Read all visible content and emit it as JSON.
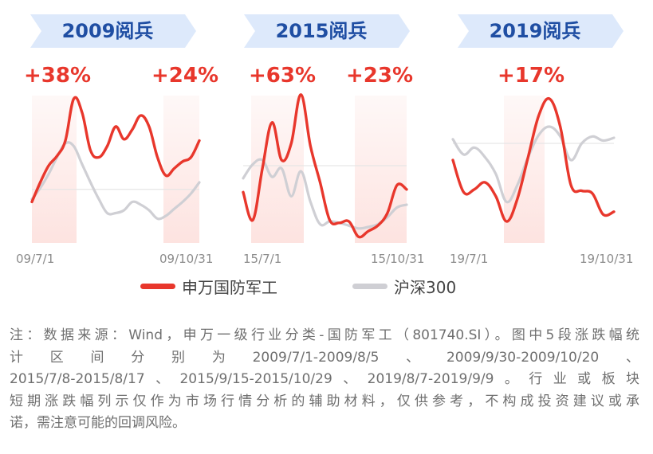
{
  "panels": [
    {
      "title": "2009阅兵",
      "left_change": "+38%",
      "right_change": "+24%",
      "x_start": "09/7/1",
      "x_end": "09/10/31"
    },
    {
      "title": "2015阅兵",
      "left_change": "+63%",
      "right_change": "+23%",
      "x_start": "15/7/1",
      "x_end": "15/10/31"
    },
    {
      "title": "2019阅兵",
      "left_change": "+17%",
      "right_change": "",
      "x_start": "19/7/1",
      "x_end": "19/10/31"
    }
  ],
  "legend": [
    {
      "label": "申万国防军工",
      "color": "#e8372c"
    },
    {
      "label": "沪深300",
      "color": "#cfcfd4"
    }
  ],
  "note_lines": [
    "注：数据来源：Wind，申万一级行业分类-国防军工（801740.SI）。图中5段涨跌幅统",
    "计区间分别为2009/7/1-2009/8/5、2009/9/30-2009/10/20、",
    "2015/7/8-2015/8/17、2015/9/15-2015/10/29、2019/8/7-2019/9/9。行业或板块",
    "短期涨跌幅列示仅作为市场行情分析的辅助材料，仅供参考，不构成投资建议或承",
    "诺，需注意可能的回调风险。"
  ],
  "colors": {
    "pill_bg": "#dde9fb",
    "pill_text": "#1f4ea3",
    "highlight": "#fde3e0",
    "red": "#e8372c",
    "gray": "#cfcfd4"
  },
  "chart_data": [
    {
      "type": "line",
      "title": "2009阅兵",
      "x_range": [
        "09/7/1",
        "09/10/31"
      ],
      "highlights": [
        {
          "start": "2009/7/1",
          "end": "2009/8/5",
          "change": "+38%"
        },
        {
          "start": "2009/9/30",
          "end": "2009/10/20",
          "change": "+24%"
        }
      ],
      "series": [
        {
          "name": "申万国防军工",
          "values": [
            0.18,
            0.32,
            0.44,
            0.51,
            0.62,
            0.92,
            0.82,
            0.55,
            0.5,
            0.58,
            0.72,
            0.63,
            0.7,
            0.8,
            0.72,
            0.5,
            0.37,
            0.42,
            0.47,
            0.5,
            0.62
          ]
        },
        {
          "name": "沪深300",
          "values": [
            0.2,
            0.28,
            0.38,
            0.5,
            0.6,
            0.58,
            0.45,
            0.32,
            0.2,
            0.1,
            0.1,
            0.12,
            0.18,
            0.16,
            0.12,
            0.06,
            0.08,
            0.13,
            0.18,
            0.24,
            0.32
          ]
        }
      ]
    },
    {
      "type": "line",
      "title": "2015阅兵",
      "x_range": [
        "15/7/1",
        "15/10/31"
      ],
      "highlights": [
        {
          "start": "2015/7/8",
          "end": "2015/8/17",
          "change": "+63%"
        },
        {
          "start": "2015/9/15",
          "end": "2015/10/29",
          "change": "+23%"
        }
      ],
      "series": [
        {
          "name": "申万国防军工",
          "values": [
            0.25,
            0.05,
            0.42,
            0.75,
            0.48,
            0.6,
            0.95,
            0.58,
            0.32,
            0.05,
            0.03,
            0.04,
            -0.07,
            -0.03,
            0.01,
            0.1,
            0.3,
            0.27
          ]
        },
        {
          "name": "沪深300",
          "values": [
            0.35,
            0.45,
            0.48,
            0.36,
            0.42,
            0.22,
            0.4,
            0.18,
            0.02,
            0.04,
            0.03,
            0.01,
            -0.01,
            0.0,
            0.02,
            0.07,
            0.14,
            0.16
          ]
        }
      ]
    },
    {
      "type": "line",
      "title": "2019阅兵",
      "x_range": [
        "19/7/1",
        "19/10/31"
      ],
      "highlights": [
        {
          "start": "2019/8/7",
          "end": "2019/9/9",
          "change": "+17%"
        }
      ],
      "series": [
        {
          "name": "申万国防军工",
          "values": [
            0.48,
            0.25,
            0.27,
            0.32,
            0.22,
            0.04,
            0.2,
            0.5,
            0.8,
            0.92,
            0.72,
            0.3,
            0.26,
            0.24,
            0.09,
            0.11
          ]
        },
        {
          "name": "沪深300",
          "values": [
            0.63,
            0.52,
            0.57,
            0.5,
            0.38,
            0.18,
            0.3,
            0.5,
            0.66,
            0.72,
            0.65,
            0.48,
            0.6,
            0.65,
            0.62,
            0.64
          ]
        }
      ]
    }
  ]
}
